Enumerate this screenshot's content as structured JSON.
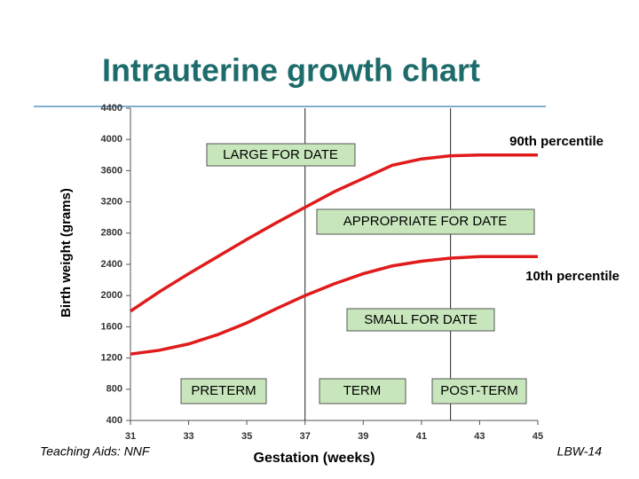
{
  "chart_data": {
    "type": "line",
    "title": "Intrauterine growth chart",
    "ylabel": "Birth weight (grams)",
    "xlabel": "Gestation (weeks)",
    "footer_left": "Teaching Aids: NNF",
    "footer_right": "LBW-14",
    "zones": [
      "LARGE FOR DATE",
      "APPROPRIATE FOR DATE",
      "SMALL FOR DATE",
      "PRETERM",
      "TERM",
      "POST-TERM"
    ],
    "x": [
      31,
      32,
      33,
      34,
      35,
      36,
      37,
      38,
      39,
      40,
      41,
      42,
      43,
      44,
      45
    ],
    "series": [
      {
        "name": "90th percentile",
        "color": "#e01b1b",
        "values": [
          1800,
          2050,
          2280,
          2500,
          2720,
          2930,
          3130,
          3330,
          3500,
          3670,
          3750,
          3790,
          3800,
          3800,
          3800
        ]
      },
      {
        "name": "10th percentile",
        "color": "#e01b1b",
        "values": [
          1250,
          1300,
          1380,
          1500,
          1650,
          1830,
          2000,
          2150,
          2280,
          2380,
          2440,
          2480,
          2500,
          2500,
          2500
        ]
      }
    ],
    "vlines": [
      37,
      42
    ],
    "xlim": [
      31,
      45
    ],
    "xticks": [
      31,
      33,
      35,
      37,
      39,
      41,
      43,
      45
    ],
    "ylim": [
      400,
      4400
    ],
    "yticks": [
      400,
      800,
      1200,
      1600,
      2000,
      2400,
      2800,
      3200,
      3600,
      4000,
      4400
    ]
  }
}
